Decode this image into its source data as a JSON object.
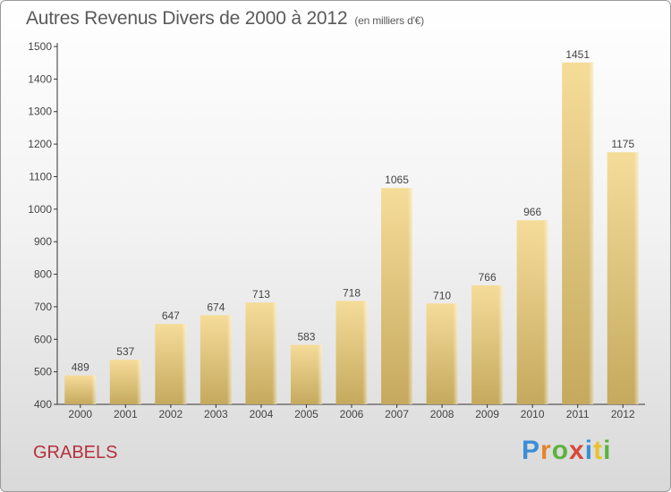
{
  "title": "Autres Revenus Divers de 2000 à 2012",
  "subtitle": "(en milliers d'€)",
  "location": "GRABELS",
  "logo": "Proxiti",
  "colors": {
    "bar_top": "#f5dc99",
    "bar_bottom": "#c5a95e",
    "location": "#b5323d",
    "text": "#444444",
    "axis": "#333333"
  },
  "chart_data": {
    "type": "bar",
    "title": "Autres Revenus Divers de 2000 à 2012",
    "subtitle": "(en milliers d'€)",
    "categories": [
      "2000",
      "2001",
      "2002",
      "2003",
      "2004",
      "2005",
      "2006",
      "2007",
      "2008",
      "2009",
      "2010",
      "2011",
      "2012"
    ],
    "values": [
      489,
      537,
      647,
      674,
      713,
      583,
      718,
      1065,
      710,
      766,
      966,
      1451,
      1175
    ],
    "ylim": [
      400,
      1500
    ],
    "yticks": [
      400,
      500,
      600,
      700,
      800,
      900,
      1000,
      1100,
      1200,
      1300,
      1400,
      1500
    ],
    "xlabel": "",
    "ylabel": "",
    "grid": false,
    "data_labels": true
  }
}
